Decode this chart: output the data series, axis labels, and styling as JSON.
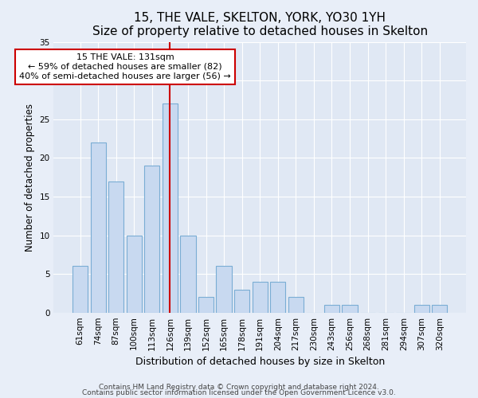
{
  "title1": "15, THE VALE, SKELTON, YORK, YO30 1YH",
  "title2": "Size of property relative to detached houses in Skelton",
  "xlabel": "Distribution of detached houses by size in Skelton",
  "ylabel": "Number of detached properties",
  "bin_labels": [
    "61sqm",
    "74sqm",
    "87sqm",
    "100sqm",
    "113sqm",
    "126sqm",
    "139sqm",
    "152sqm",
    "165sqm",
    "178sqm",
    "191sqm",
    "204sqm",
    "217sqm",
    "230sqm",
    "243sqm",
    "256sqm",
    "268sqm",
    "281sqm",
    "294sqm",
    "307sqm",
    "320sqm"
  ],
  "bar_heights": [
    6,
    22,
    17,
    10,
    19,
    27,
    10,
    2,
    6,
    3,
    4,
    4,
    2,
    0,
    1,
    1,
    0,
    0,
    0,
    1,
    1
  ],
  "bar_color": "#c8d9f0",
  "bar_edge_color": "#7aadd4",
  "vline_index": 5,
  "vline_color": "#cc0000",
  "annotation_title": "15 THE VALE: 131sqm",
  "annotation_line1": "← 59% of detached houses are smaller (82)",
  "annotation_line2": "40% of semi-detached houses are larger (56) →",
  "annotation_box_facecolor": "#ffffff",
  "annotation_box_edgecolor": "#cc0000",
  "ylim": [
    0,
    35
  ],
  "yticks": [
    0,
    5,
    10,
    15,
    20,
    25,
    30,
    35
  ],
  "footnote1": "Contains HM Land Registry data © Crown copyright and database right 2024.",
  "footnote2": "Contains public sector information licensed under the Open Government Licence v3.0.",
  "bg_color": "#e8eef8",
  "plot_bg_color": "#e0e8f4",
  "grid_color": "#ffffff",
  "title1_fontsize": 11,
  "title2_fontsize": 10,
  "xlabel_fontsize": 9,
  "ylabel_fontsize": 8.5,
  "tick_fontsize": 7.5,
  "annot_fontsize": 8
}
